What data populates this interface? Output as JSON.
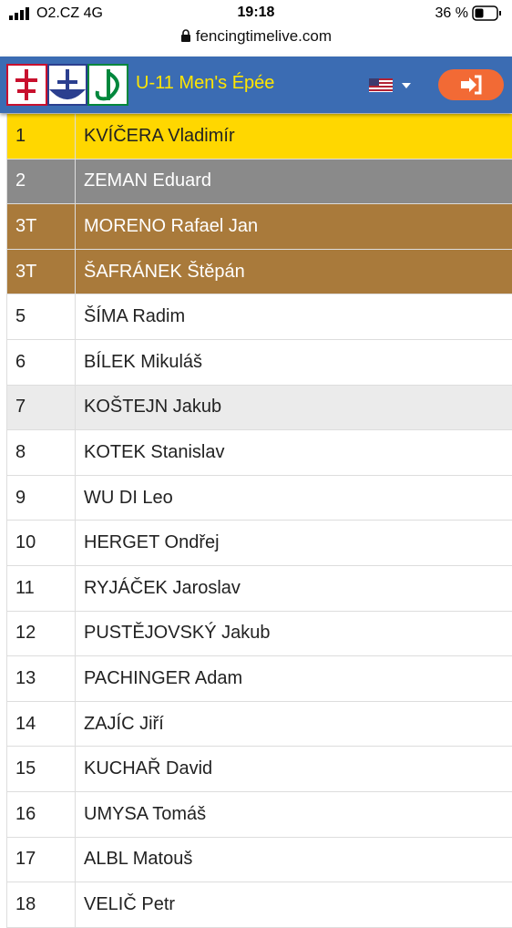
{
  "status_bar": {
    "carrier": "O2.CZ  4G",
    "time": "19:18",
    "battery": "36 %"
  },
  "url": "fencingtimelive.com",
  "header": {
    "title": "U-11 Men's Épée"
  },
  "table": {
    "rows": [
      [
        "1",
        "KVÍČERA Vladimír"
      ],
      [
        "2",
        "ZEMAN Eduard"
      ],
      [
        "3T",
        "MORENO Rafael Jan"
      ],
      [
        "3T",
        "ŠAFRÁNEK Štěpán"
      ],
      [
        "5",
        "ŠÍMA Radim"
      ],
      [
        "6",
        "BÍLEK Mikuláš"
      ],
      [
        "7",
        "KOŠTEJN Jakub"
      ],
      [
        "8",
        "KOTEK Stanislav"
      ],
      [
        "9",
        "WU DI Leo"
      ],
      [
        "10",
        "HERGET Ondřej"
      ],
      [
        "11",
        "RYJÁČEK Jaroslav"
      ],
      [
        "12",
        "PUSTĚJOVSKÝ Jakub"
      ],
      [
        "13",
        "PACHINGER Adam"
      ],
      [
        "14",
        "ZAJÍC Jiří"
      ],
      [
        "15",
        "KUCHAŘ David"
      ],
      [
        "16",
        "UMYSA Tomáš"
      ],
      [
        "17",
        "ALBL Matouš"
      ],
      [
        "18",
        "VELIČ Petr"
      ]
    ]
  }
}
